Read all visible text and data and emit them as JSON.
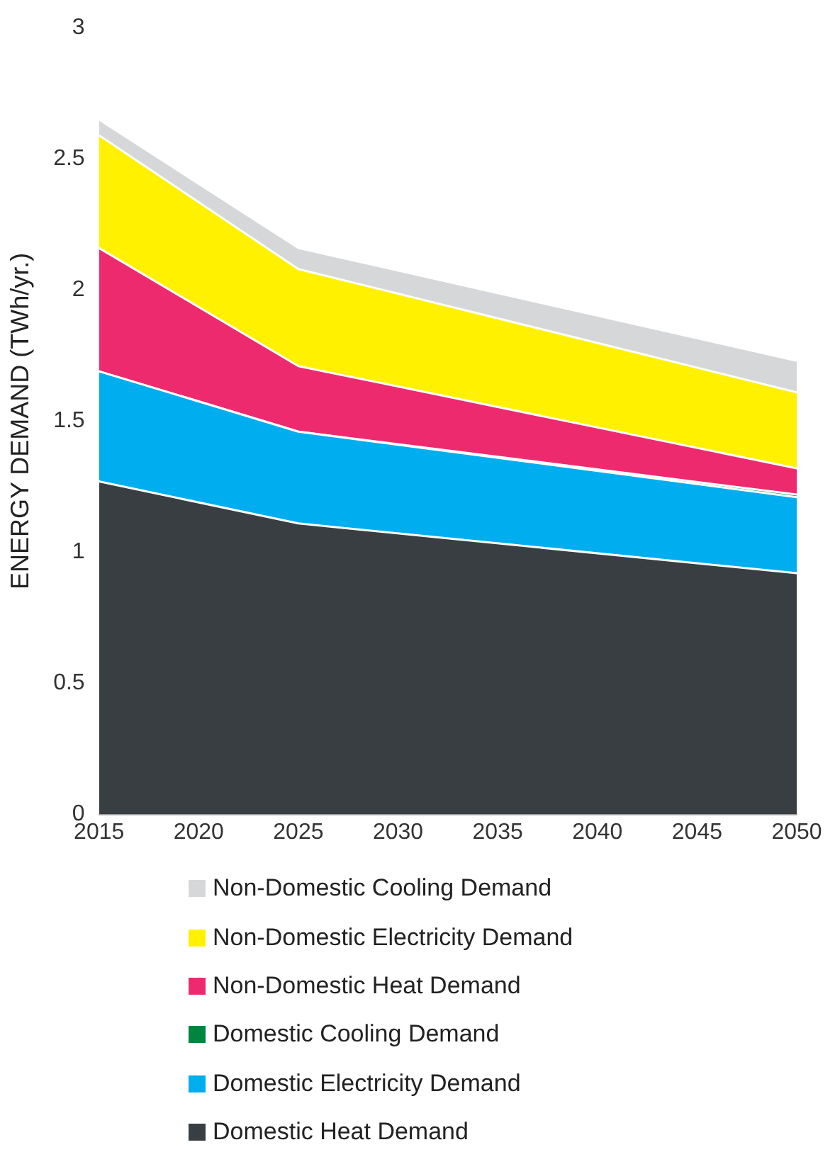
{
  "chart_data": {
    "type": "area",
    "stacked": true,
    "ylabel": "ENERGY DEMAND (TWh/yr.)",
    "x": [
      2015,
      2025,
      2050
    ],
    "xlim": [
      2015,
      2050
    ],
    "xticks": [
      2015,
      2020,
      2025,
      2030,
      2035,
      2040,
      2045,
      2050
    ],
    "ylim": [
      0,
      3
    ],
    "yticks": [
      0,
      0.5,
      1,
      1.5,
      2,
      2.5,
      3
    ],
    "grid": false,
    "legend": "bottom",
    "series": [
      {
        "name": "Domestic Heat Demand",
        "color": "#383e42",
        "values": [
          1.27,
          1.11,
          0.92
        ]
      },
      {
        "name": "Domestic Electricity Demand",
        "color": "#00aeef",
        "values": [
          0.42,
          0.35,
          0.29
        ]
      },
      {
        "name": "Domestic Cooling Demand",
        "color": "#00853f",
        "values": [
          0,
          0,
          0.01
        ]
      },
      {
        "name": "Non-Domestic Heat Demand",
        "color": "#ee2a6f",
        "values": [
          0.47,
          0.25,
          0.1
        ]
      },
      {
        "name": "Non-Domestic Electricity Demand",
        "color": "#fff100",
        "values": [
          0.43,
          0.37,
          0.29
        ]
      },
      {
        "name": "Non-Domestic Cooling Demand",
        "color": "#d6d7d9",
        "values": [
          0.06,
          0.08,
          0.12
        ]
      }
    ]
  }
}
